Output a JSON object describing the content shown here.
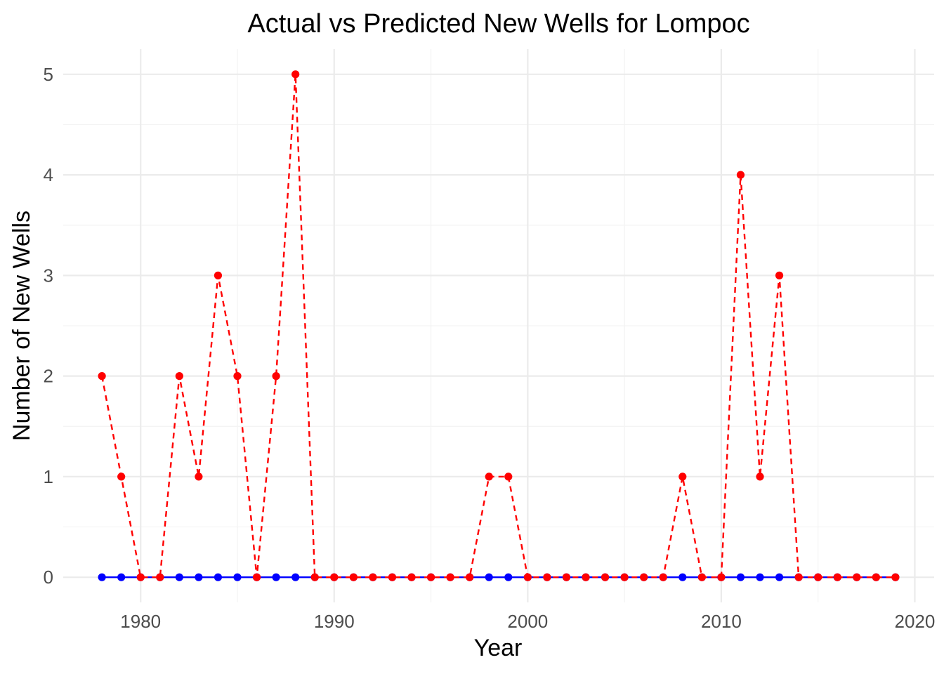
{
  "chart_data": {
    "type": "line",
    "title": "Actual vs Predicted New Wells for Lompoc",
    "xlabel": "Year",
    "ylabel": "Number of New Wells",
    "xlim": [
      1976,
      2021
    ],
    "ylim": [
      -0.25,
      5.25
    ],
    "x_ticks": [
      1980,
      1990,
      2000,
      2010,
      2020
    ],
    "y_ticks": [
      0,
      1,
      2,
      3,
      4,
      5
    ],
    "grid": true,
    "legend": "none",
    "x": [
      1978,
      1979,
      1980,
      1981,
      1982,
      1983,
      1984,
      1985,
      1986,
      1987,
      1988,
      1989,
      1990,
      1991,
      1992,
      1993,
      1994,
      1995,
      1996,
      1997,
      1998,
      1999,
      2000,
      2001,
      2002,
      2003,
      2004,
      2005,
      2006,
      2007,
      2008,
      2009,
      2010,
      2011,
      2012,
      2013,
      2014,
      2015,
      2016,
      2017,
      2018,
      2019
    ],
    "series": [
      {
        "color": "#0000ff",
        "line_style": "solid",
        "values": [
          0,
          0,
          0,
          0,
          0,
          0,
          0,
          0,
          0,
          0,
          0,
          0,
          0,
          0,
          0,
          0,
          0,
          0,
          0,
          0,
          0,
          0,
          0,
          0,
          0,
          0,
          0,
          0,
          0,
          0,
          0,
          0,
          0,
          0,
          0,
          0,
          0,
          0,
          0,
          0,
          0,
          0
        ]
      },
      {
        "color": "#ff0000",
        "line_style": "dashed",
        "values": [
          2,
          1,
          0,
          0,
          2,
          1,
          3,
          2,
          0,
          2,
          5,
          0,
          0,
          0,
          0,
          0,
          0,
          0,
          0,
          0,
          1,
          1,
          0,
          0,
          0,
          0,
          0,
          0,
          0,
          0,
          1,
          0,
          0,
          4,
          1,
          3,
          0,
          0,
          0,
          0,
          0,
          0
        ]
      }
    ]
  }
}
